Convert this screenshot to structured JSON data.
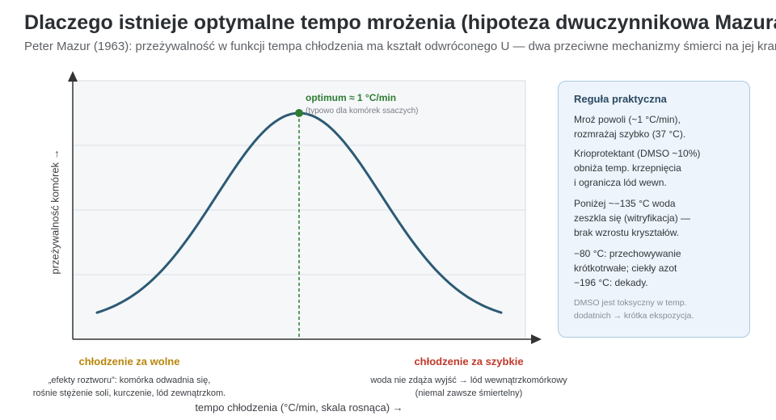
{
  "title": "Dlaczego istnieje optymalne tempo mrożenia (hipoteza dwuczynnikowa Mazura)",
  "subtitle": "Peter Mazur (1963): przeżywalność w funkcji tempa chłodzenia ma kształt odwróconego U — dwa przeciwne mechanizmy śmierci na jej krańcach",
  "axes": {
    "y_label": "przeżywalność komórek →",
    "x_label": "tempo chłodzenia (°C/min, skala rosnąca) →"
  },
  "optimum": {
    "label": "optimum ≈ 1 °C/min",
    "note": "(typowo dla komórek ssaczych)"
  },
  "zones": {
    "slow": {
      "title": "chłodzenie za wolne",
      "line1": "„efekty roztworu”: komórka odwadnia się,",
      "line2": "rośnie stężenie soli, kurczenie, lód zewnątrzkom."
    },
    "fast": {
      "title": "chłodzenie za szybkie",
      "line1": "woda nie zdąża wyjść → lód wewnątrzkomórkowy",
      "line2": "(niemal zawsze śmiertelny)"
    }
  },
  "rule": {
    "title": "Reguła praktyczna",
    "p1": "Mroź powoli (~1 °C/min),\nrozmrażaj szybko (37 °C).",
    "p2": "Krioprotektant (DMSO ~10%)\nobniża temp. krzepnięcia\ni ogranicza lód wewn.",
    "p3": "Poniżej ~−135 °C woda\nzeszkla się (witryfikacja) —\nbrak wzrostu kryształów.",
    "p4": "−80 °C: przechowywanie\nkrótkotrwałe; ciekły azot\n−196 °C: dekady.",
    "note": "DMSO jest toksyczny w temp.\ndodatnich → krótka ekspozycja."
  },
  "colors": {
    "curve": "#2c5a74",
    "optimum": "#2e7d32",
    "slow": "#b8860b",
    "fast": "#c0392b",
    "plot_bg": "#f5f7f9",
    "axis": "#333333"
  }
}
